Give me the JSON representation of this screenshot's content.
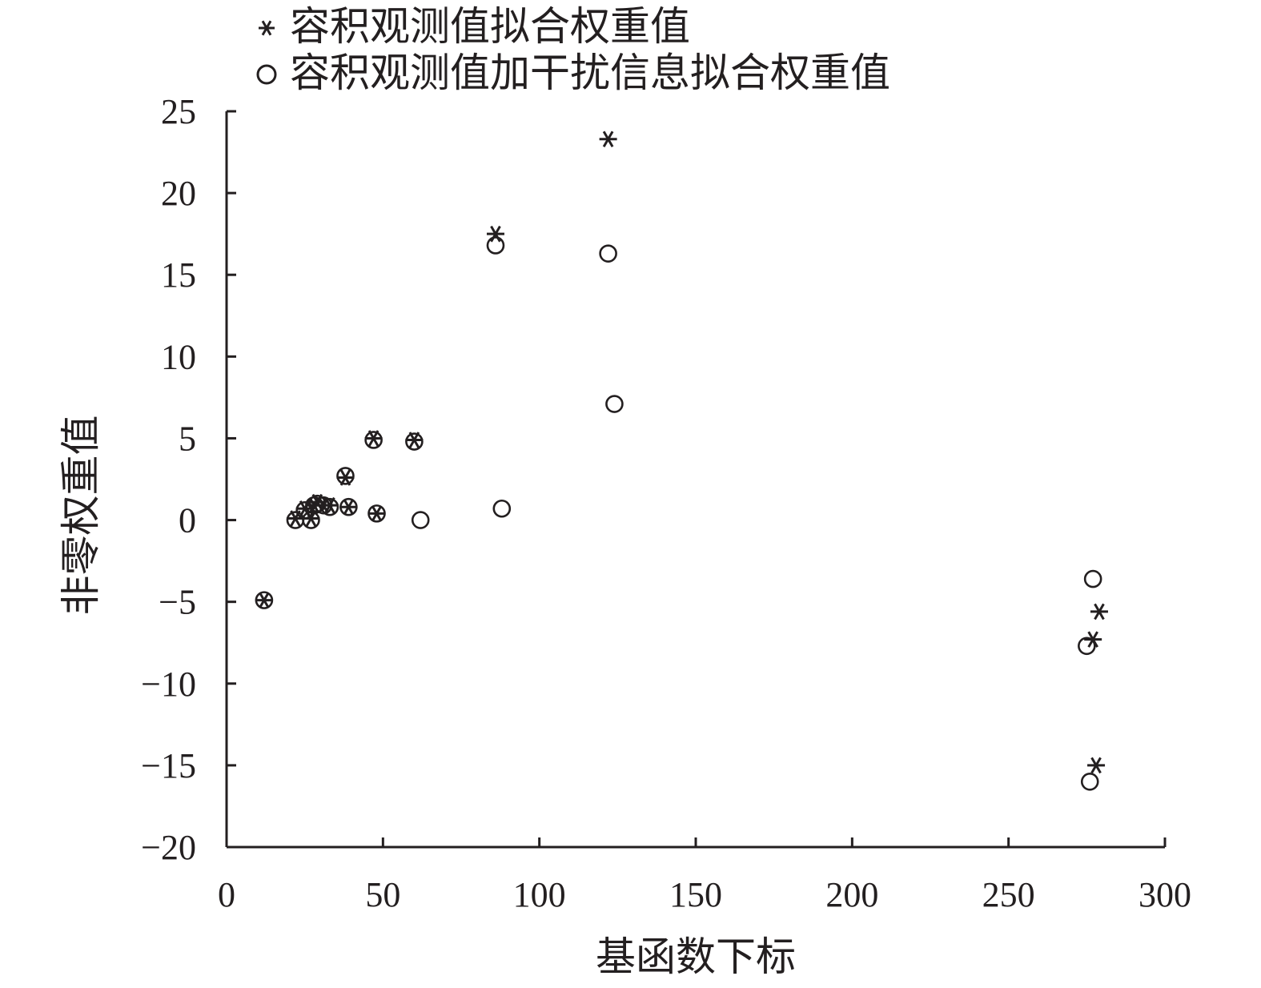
{
  "chart_data": {
    "type": "scatter",
    "title": "",
    "xlabel": "基函数下标",
    "ylabel": "非零权重值",
    "xlim": [
      0,
      300
    ],
    "ylim": [
      -20,
      25
    ],
    "xticks": [
      0,
      50,
      100,
      150,
      200,
      250,
      300
    ],
    "yticks": [
      -20,
      -15,
      -10,
      -5,
      0,
      5,
      10,
      15,
      20,
      25
    ],
    "xtick_labels": [
      "0",
      "50",
      "100",
      "150",
      "200",
      "250",
      "300"
    ],
    "ytick_labels": [
      "−20",
      "−15",
      "−10",
      "−5",
      "0",
      "5",
      "10",
      "15",
      "20",
      "25"
    ],
    "grid": false,
    "legend_position": "top-left",
    "series": [
      {
        "name": "容积观测值拟合权重值",
        "marker": "asterisk",
        "points": [
          [
            12,
            -4.9
          ],
          [
            22,
            0.1
          ],
          [
            25,
            0.7
          ],
          [
            27,
            0.1
          ],
          [
            28,
            0.9
          ],
          [
            29,
            1.1
          ],
          [
            31,
            0.9
          ],
          [
            33,
            0.9
          ],
          [
            38,
            2.6
          ],
          [
            39,
            0.8
          ],
          [
            47,
            5.0
          ],
          [
            48,
            0.4
          ],
          [
            60,
            4.9
          ],
          [
            86,
            17.5
          ],
          [
            122,
            23.3
          ],
          [
            277,
            -7.3
          ],
          [
            279,
            -5.6
          ],
          [
            278,
            -15.0
          ]
        ]
      },
      {
        "name": "容积观测值加干扰信息拟合权重值",
        "marker": "circle",
        "points": [
          [
            12,
            -4.9
          ],
          [
            22,
            0.0
          ],
          [
            25,
            0.6
          ],
          [
            27,
            0.0
          ],
          [
            28,
            0.9
          ],
          [
            29,
            1.0
          ],
          [
            31,
            0.9
          ],
          [
            33,
            0.8
          ],
          [
            38,
            2.7
          ],
          [
            39,
            0.8
          ],
          [
            47,
            4.9
          ],
          [
            48,
            0.4
          ],
          [
            60,
            4.8
          ],
          [
            62,
            0.0
          ],
          [
            86,
            16.8
          ],
          [
            88,
            0.7
          ],
          [
            122,
            16.3
          ],
          [
            124,
            7.1
          ],
          [
            275,
            -7.7
          ],
          [
            277,
            -3.6
          ],
          [
            276,
            -16.0
          ]
        ]
      }
    ]
  }
}
